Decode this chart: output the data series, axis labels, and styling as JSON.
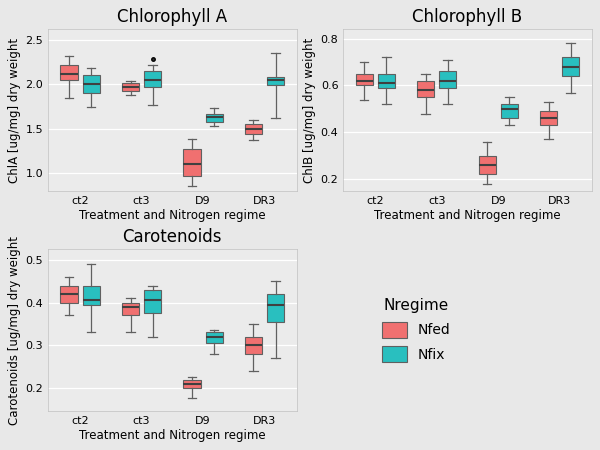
{
  "fig_bg": "#e8e8e8",
  "plot_bg": "#ebebeb",
  "nfed_color": "#F07070",
  "nfix_color": "#29BFBF",
  "median_color": "#404040",
  "box_edge_color": "#606060",
  "whisker_color": "#606060",
  "categories": [
    "ct2",
    "ct3",
    "D9",
    "DR3"
  ],
  "xlabel": "Treatment and Nitrogen regime",
  "chla": {
    "title": "Chlorophyll A",
    "ylabel": "ChlA [ug/mg] dry weight",
    "ylim": [
      0.8,
      2.62
    ],
    "yticks": [
      1.0,
      1.5,
      2.0,
      2.5
    ],
    "nfed": {
      "ct2": {
        "q1": 2.05,
        "med": 2.12,
        "q3": 2.22,
        "whislo": 1.85,
        "whishi": 2.32,
        "fliers": []
      },
      "ct3": {
        "q1": 1.93,
        "med": 1.97,
        "q3": 2.01,
        "whislo": 1.88,
        "whishi": 2.04,
        "fliers": []
      },
      "D9": {
        "q1": 0.97,
        "med": 1.1,
        "q3": 1.27,
        "whislo": 0.86,
        "whishi": 1.38,
        "fliers": []
      },
      "DR3": {
        "q1": 1.44,
        "med": 1.5,
        "q3": 1.55,
        "whislo": 1.37,
        "whishi": 1.6,
        "fliers": []
      }
    },
    "nfix": {
      "ct2": {
        "q1": 1.9,
        "med": 2.0,
        "q3": 2.1,
        "whislo": 1.75,
        "whishi": 2.18,
        "fliers": []
      },
      "ct3": {
        "q1": 1.97,
        "med": 2.05,
        "q3": 2.15,
        "whislo": 1.77,
        "whishi": 2.22,
        "fliers": [
          2.28
        ]
      },
      "D9": {
        "q1": 1.58,
        "med": 1.63,
        "q3": 1.67,
        "whislo": 1.53,
        "whishi": 1.73,
        "fliers": []
      },
      "DR3": {
        "q1": 1.99,
        "med": 2.05,
        "q3": 2.08,
        "whislo": 1.62,
        "whishi": 2.35,
        "fliers": []
      }
    }
  },
  "chlb": {
    "title": "Chlorophyll B",
    "ylabel": "ChlB [ug/mg] dry weight",
    "ylim": [
      0.15,
      0.84
    ],
    "yticks": [
      0.2,
      0.4,
      0.6,
      0.8
    ],
    "nfed": {
      "ct2": {
        "q1": 0.6,
        "med": 0.62,
        "q3": 0.65,
        "whislo": 0.54,
        "whishi": 0.7,
        "fliers": []
      },
      "ct3": {
        "q1": 0.55,
        "med": 0.58,
        "q3": 0.62,
        "whislo": 0.48,
        "whishi": 0.65,
        "fliers": []
      },
      "D9": {
        "q1": 0.22,
        "med": 0.26,
        "q3": 0.3,
        "whislo": 0.18,
        "whishi": 0.36,
        "fliers": []
      },
      "DR3": {
        "q1": 0.43,
        "med": 0.46,
        "q3": 0.49,
        "whislo": 0.37,
        "whishi": 0.53,
        "fliers": []
      }
    },
    "nfix": {
      "ct2": {
        "q1": 0.59,
        "med": 0.61,
        "q3": 0.65,
        "whislo": 0.52,
        "whishi": 0.72,
        "fliers": []
      },
      "ct3": {
        "q1": 0.59,
        "med": 0.62,
        "q3": 0.66,
        "whislo": 0.52,
        "whishi": 0.71,
        "fliers": []
      },
      "D9": {
        "q1": 0.46,
        "med": 0.5,
        "q3": 0.52,
        "whislo": 0.43,
        "whishi": 0.55,
        "fliers": []
      },
      "DR3": {
        "q1": 0.64,
        "med": 0.68,
        "q3": 0.72,
        "whislo": 0.57,
        "whishi": 0.78,
        "fliers": []
      }
    }
  },
  "carot": {
    "title": "Carotenoids",
    "ylabel": "Carotenoids [ug/mg] dry weight",
    "ylim": [
      0.145,
      0.525
    ],
    "yticks": [
      0.2,
      0.3,
      0.4,
      0.5
    ],
    "nfed": {
      "ct2": {
        "q1": 0.4,
        "med": 0.42,
        "q3": 0.44,
        "whislo": 0.37,
        "whishi": 0.46,
        "fliers": []
      },
      "ct3": {
        "q1": 0.37,
        "med": 0.39,
        "q3": 0.4,
        "whislo": 0.33,
        "whishi": 0.41,
        "fliers": []
      },
      "D9": {
        "q1": 0.198,
        "med": 0.208,
        "q3": 0.218,
        "whislo": 0.175,
        "whishi": 0.225,
        "fliers": []
      },
      "DR3": {
        "q1": 0.28,
        "med": 0.3,
        "q3": 0.32,
        "whislo": 0.24,
        "whishi": 0.35,
        "fliers": []
      }
    },
    "nfix": {
      "ct2": {
        "q1": 0.395,
        "med": 0.405,
        "q3": 0.44,
        "whislo": 0.33,
        "whishi": 0.49,
        "fliers": []
      },
      "ct3": {
        "q1": 0.375,
        "med": 0.405,
        "q3": 0.43,
        "whislo": 0.32,
        "whishi": 0.44,
        "fliers": []
      },
      "D9": {
        "q1": 0.305,
        "med": 0.32,
        "q3": 0.33,
        "whislo": 0.28,
        "whishi": 0.335,
        "fliers": []
      },
      "DR3": {
        "q1": 0.355,
        "med": 0.395,
        "q3": 0.42,
        "whislo": 0.27,
        "whishi": 0.45,
        "fliers": []
      }
    }
  },
  "legend_title": "Nregime",
  "legend_nfed": "Nfed",
  "legend_nfix": "Nfix",
  "title_fontsize": 12,
  "axis_label_fontsize": 8.5,
  "tick_fontsize": 8,
  "legend_fontsize": 10,
  "legend_title_fontsize": 11
}
